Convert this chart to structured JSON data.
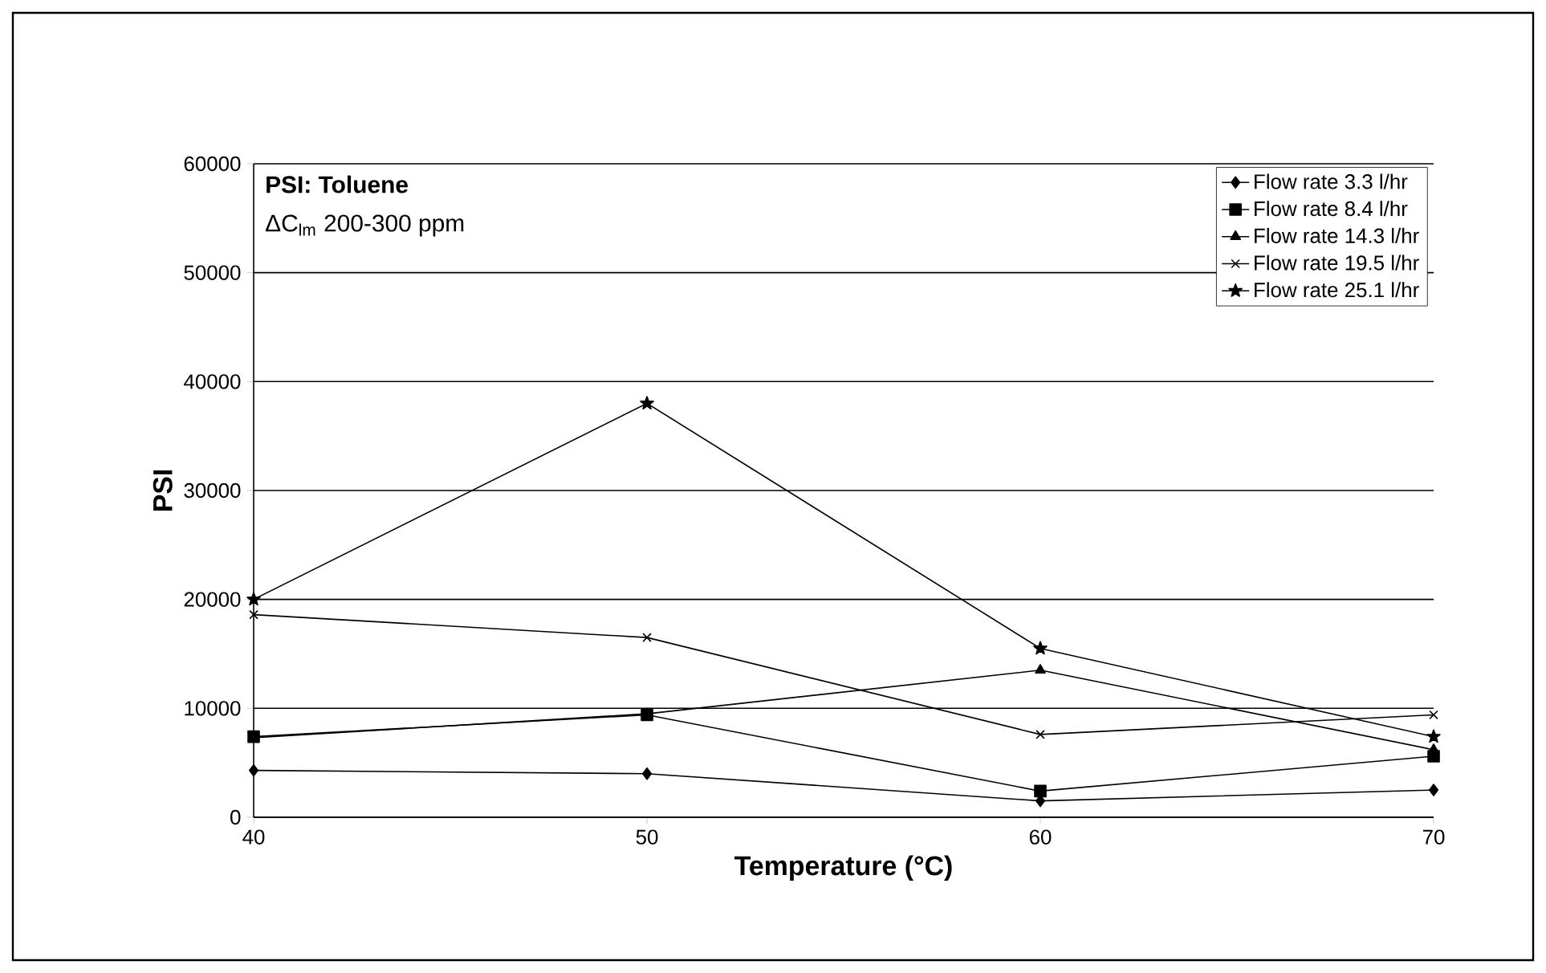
{
  "chart_data": {
    "type": "line",
    "xlabel": "Temperature (°C)",
    "ylabel": "PSI",
    "annotations": [
      "**PSI: Toluene**",
      "ΔC$_{lm}$ 200-300 ppm"
    ],
    "x": [
      40,
      50,
      60,
      70
    ],
    "xlim": [
      40,
      70
    ],
    "xticks": [
      40,
      50,
      60,
      70
    ],
    "ylim": [
      0,
      60000
    ],
    "yticks": [
      0,
      10000,
      20000,
      30000,
      40000,
      50000,
      60000
    ],
    "grid": "y",
    "legend": "top right",
    "line_style": "solid",
    "series": [
      {
        "name": "Flow rate 3.3 l/hr",
        "color": "#000000",
        "marker": "diamond",
        "values": [
          4300,
          4000,
          1500,
          2500
        ]
      },
      {
        "name": "Flow rate 8.4 l/hr",
        "color": "#000000",
        "marker": "square",
        "values": [
          7400,
          9400,
          2400,
          5600
        ]
      },
      {
        "name": "Flow rate 14.3 l/hr",
        "color": "#000000",
        "marker": "triangle",
        "values": [
          7300,
          9500,
          13500,
          6200
        ]
      },
      {
        "name": "Flow rate 19.5 l/hr",
        "color": "#000000",
        "marker": "cross",
        "values": [
          18600,
          16500,
          7600,
          9400
        ]
      },
      {
        "name": "Flow rate 25.1 l/hr",
        "color": "#000000",
        "marker": "star",
        "values": [
          20000,
          38000,
          15500,
          7400
        ]
      }
    ]
  }
}
